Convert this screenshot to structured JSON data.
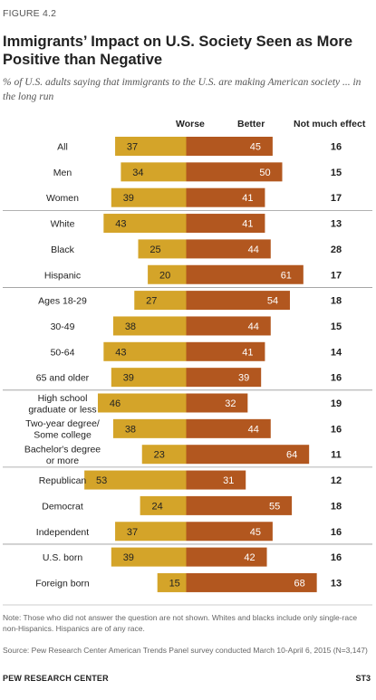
{
  "figure_label": "FIGURE 4.2",
  "title": "Immigrants’ Impact on U.S. Society Seen as More Positive than Negative",
  "subtitle": "% of U.S. adults saying that immigrants to the U.S. are making American society ... in the long run",
  "headers": {
    "worse": "Worse",
    "better": "Better",
    "no_effect": "Not much effect"
  },
  "colors": {
    "worse": "#D4A429",
    "better": "#B2571F",
    "divider": "#999999"
  },
  "chart_data": {
    "type": "bar",
    "orientation": "horizontal-diverging",
    "series": [
      {
        "name": "Worse",
        "values": [
          37,
          34,
          39,
          43,
          25,
          20,
          27,
          38,
          43,
          39,
          46,
          38,
          23,
          53,
          24,
          37,
          39,
          15
        ]
      },
      {
        "name": "Better",
        "values": [
          45,
          50,
          41,
          41,
          44,
          61,
          54,
          44,
          41,
          39,
          32,
          44,
          64,
          31,
          55,
          45,
          42,
          68
        ]
      },
      {
        "name": "Not much effect",
        "values": [
          16,
          15,
          17,
          13,
          28,
          17,
          18,
          15,
          14,
          16,
          19,
          16,
          11,
          12,
          18,
          16,
          16,
          13
        ]
      }
    ],
    "categories": [
      "All",
      "Men",
      "Women",
      "White",
      "Black",
      "Hispanic",
      "Ages 18-29",
      "30-49",
      "50-64",
      "65 and older",
      "High school graduate or less",
      "Two-year degree/ Some college",
      "Bachelor's degree or more",
      "Republican",
      "Democrat",
      "Independent",
      "U.S. born",
      "Foreign born"
    ],
    "category_lines": [
      [
        "All"
      ],
      [
        "Men"
      ],
      [
        "Women"
      ],
      [
        "White"
      ],
      [
        "Black"
      ],
      [
        "Hispanic"
      ],
      [
        "Ages 18-29"
      ],
      [
        "30-49"
      ],
      [
        "50-64"
      ],
      [
        "65 and older"
      ],
      [
        "High school",
        "graduate or less"
      ],
      [
        "Two-year degree/",
        "Some college"
      ],
      [
        "Bachelor's degree",
        "or more"
      ],
      [
        "Republican"
      ],
      [
        "Democrat"
      ],
      [
        "Independent"
      ],
      [
        "U.S. born"
      ],
      [
        "Foreign born"
      ]
    ],
    "groups_end_after": [
      2,
      5,
      9,
      12,
      15
    ]
  },
  "note": "Note: Those who did not answer the question are not shown. Whites and blacks include only single-race non-Hispanics. Hispanics are of any race.",
  "source": "Source: Pew Research Center American Trends Panel survey conducted March 10-April 6, 2015 (N=3,147)",
  "footer_org": "PEW RESEARCH CENTER",
  "footer_id": "ST3"
}
